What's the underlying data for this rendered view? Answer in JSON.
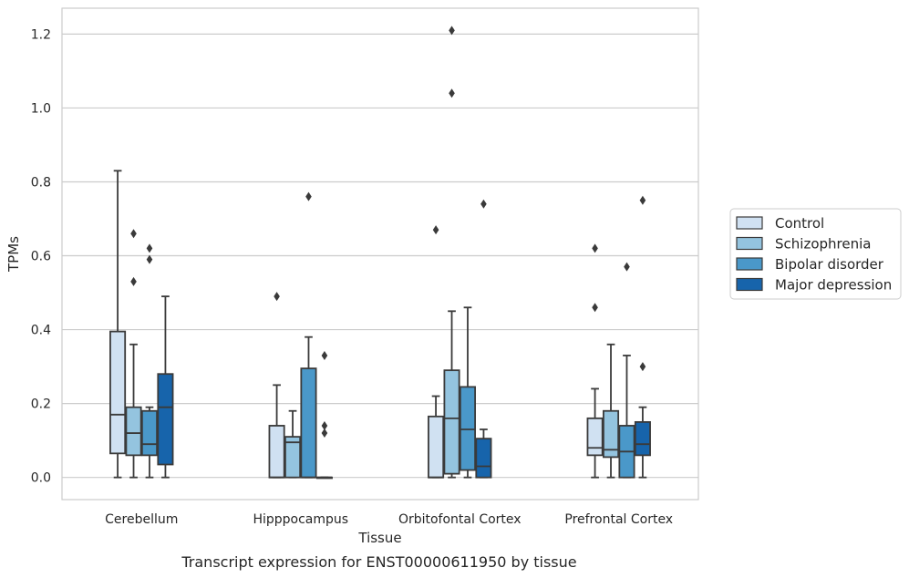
{
  "caption": "Transcript expression for ENST00000611950 by tissue",
  "chart_data": {
    "type": "box",
    "xlabel": "Tissue",
    "ylabel": "TPMs",
    "ylim": [
      -0.06,
      1.27
    ],
    "yticks": [
      0.0,
      0.2,
      0.4,
      0.6,
      0.8,
      1.0,
      1.2
    ],
    "ytick_labels": [
      "0.0",
      "0.2",
      "0.4",
      "0.6",
      "0.8",
      "1.0",
      "1.2"
    ],
    "grid": true,
    "legend_position": "right",
    "categories": [
      "Cerebellum",
      "Hipppocampus",
      "Orbitofontal Cortex",
      "Prefrontal Cortex"
    ],
    "series": [
      {
        "name": "Control",
        "color": "#d0e1f2",
        "boxes": [
          {
            "q1": 0.065,
            "median": 0.17,
            "q3": 0.395,
            "whisker_low": 0.0,
            "whisker_high": 0.83,
            "fliers": []
          },
          {
            "q1": 0.0,
            "median": 0.0,
            "q3": 0.14,
            "whisker_low": 0.0,
            "whisker_high": 0.25,
            "fliers": [
              0.49
            ]
          },
          {
            "q1": 0.0,
            "median": 0.0,
            "q3": 0.165,
            "whisker_low": 0.0,
            "whisker_high": 0.22,
            "fliers": [
              0.67
            ]
          },
          {
            "q1": 0.06,
            "median": 0.08,
            "q3": 0.16,
            "whisker_low": 0.0,
            "whisker_high": 0.24,
            "fliers": [
              0.46,
              0.62
            ]
          }
        ]
      },
      {
        "name": "Schizophrenia",
        "color": "#94c4df",
        "boxes": [
          {
            "q1": 0.06,
            "median": 0.12,
            "q3": 0.19,
            "whisker_low": 0.0,
            "whisker_high": 0.36,
            "fliers": [
              0.53,
              0.66
            ]
          },
          {
            "q1": 0.0,
            "median": 0.095,
            "q3": 0.11,
            "whisker_low": 0.0,
            "whisker_high": 0.18,
            "fliers": []
          },
          {
            "q1": 0.01,
            "median": 0.16,
            "q3": 0.29,
            "whisker_low": 0.0,
            "whisker_high": 0.45,
            "fliers": [
              1.04,
              1.21
            ]
          },
          {
            "q1": 0.055,
            "median": 0.075,
            "q3": 0.18,
            "whisker_low": 0.0,
            "whisker_high": 0.36,
            "fliers": []
          }
        ]
      },
      {
        "name": "Bipolar disorder",
        "color": "#4a98c9",
        "boxes": [
          {
            "q1": 0.06,
            "median": 0.09,
            "q3": 0.18,
            "whisker_low": 0.0,
            "whisker_high": 0.19,
            "fliers": [
              0.59,
              0.62
            ]
          },
          {
            "q1": 0.0,
            "median": 0.0,
            "q3": 0.295,
            "whisker_low": 0.0,
            "whisker_high": 0.38,
            "fliers": [
              0.76
            ]
          },
          {
            "q1": 0.02,
            "median": 0.13,
            "q3": 0.245,
            "whisker_low": 0.0,
            "whisker_high": 0.46,
            "fliers": []
          },
          {
            "q1": 0.0,
            "median": 0.07,
            "q3": 0.14,
            "whisker_low": 0.0,
            "whisker_high": 0.33,
            "fliers": [
              0.57
            ]
          }
        ]
      },
      {
        "name": "Major depression",
        "color": "#1764ab",
        "boxes": [
          {
            "q1": 0.035,
            "median": 0.19,
            "q3": 0.28,
            "whisker_low": 0.0,
            "whisker_high": 0.49,
            "fliers": []
          },
          {
            "q1": 0.0,
            "median": 0.0,
            "q3": 0.0,
            "whisker_low": 0.0,
            "whisker_high": 0.0,
            "fliers": [
              0.12,
              0.14,
              0.33
            ]
          },
          {
            "q1": 0.0,
            "median": 0.03,
            "q3": 0.105,
            "whisker_low": 0.0,
            "whisker_high": 0.13,
            "fliers": [
              0.74
            ]
          },
          {
            "q1": 0.06,
            "median": 0.09,
            "q3": 0.15,
            "whisker_low": 0.0,
            "whisker_high": 0.19,
            "fliers": [
              0.3,
              0.75
            ]
          }
        ]
      }
    ]
  }
}
